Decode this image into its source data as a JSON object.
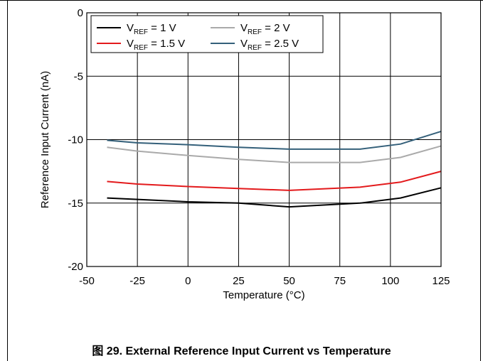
{
  "caption": "图 29. External Reference Input Current vs Temperature",
  "chart_data": {
    "type": "line",
    "xlabel": "Temperature (°C)",
    "ylabel": "Reference Input Current (nA)",
    "xlim": [
      -50,
      125
    ],
    "ylim": [
      -20,
      0
    ],
    "xticks": [
      -50,
      -25,
      0,
      25,
      50,
      75,
      100,
      125
    ],
    "yticks": [
      0,
      -5,
      -10,
      -15,
      -20
    ],
    "grid": true,
    "legend_position": "top-left",
    "series": [
      {
        "name": "V_REF = 1 V",
        "legend_main": "V",
        "legend_sub": "REF",
        "legend_tail": " = 1 V",
        "color": "#000000",
        "x": [
          -40,
          0,
          25,
          50,
          85,
          105,
          125
        ],
        "y": [
          -14.6,
          -14.9,
          -15.0,
          -15.3,
          -15.0,
          -14.6,
          -13.8
        ]
      },
      {
        "name": "V_REF = 1.5 V",
        "legend_main": "V",
        "legend_sub": "REF",
        "legend_tail": " = 1.5 V",
        "color": "#e31a1c",
        "x": [
          -40,
          -25,
          0,
          25,
          50,
          85,
          105,
          125
        ],
        "y": [
          -13.3,
          -13.5,
          -13.7,
          -13.85,
          -14.0,
          -13.75,
          -13.35,
          -12.5
        ]
      },
      {
        "name": "V_REF = 2 V",
        "legend_main": "V",
        "legend_sub": "REF",
        "legend_tail": " = 2 V",
        "color": "#aaaaaa",
        "x": [
          -40,
          -25,
          0,
          25,
          50,
          85,
          105,
          125
        ],
        "y": [
          -10.6,
          -10.9,
          -11.25,
          -11.55,
          -11.8,
          -11.8,
          -11.4,
          -10.5
        ]
      },
      {
        "name": "V_REF = 2.5 V",
        "legend_main": "V",
        "legend_sub": "REF",
        "legend_tail": " = 2.5 V",
        "color": "#34607a",
        "x": [
          -40,
          -25,
          0,
          25,
          50,
          85,
          105,
          125
        ],
        "y": [
          -10.05,
          -10.25,
          -10.4,
          -10.6,
          -10.75,
          -10.75,
          -10.35,
          -9.35
        ]
      }
    ]
  }
}
